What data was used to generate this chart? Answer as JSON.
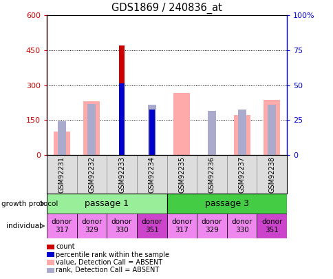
{
  "title": "GDS1869 / 240836_at",
  "samples": [
    "GSM92231",
    "GSM92232",
    "GSM92233",
    "GSM92234",
    "GSM92235",
    "GSM92236",
    "GSM92237",
    "GSM92238"
  ],
  "count_values": [
    0,
    0,
    470,
    195,
    0,
    0,
    0,
    0
  ],
  "percentile_rank_vals": [
    0,
    0,
    308,
    195,
    0,
    0,
    0,
    0
  ],
  "value_absent": [
    100,
    230,
    0,
    0,
    265,
    0,
    170,
    235
  ],
  "rank_absent": [
    145,
    218,
    0,
    215,
    0,
    190,
    195,
    215
  ],
  "ylim_left": [
    0,
    600
  ],
  "ylim_right": [
    0,
    100
  ],
  "yticks_left": [
    0,
    150,
    300,
    450,
    600
  ],
  "yticks_right": [
    0,
    25,
    50,
    75,
    100
  ],
  "color_count": "#cc0000",
  "color_rank": "#0000cc",
  "color_value_absent": "#ffaaaa",
  "color_rank_absent": "#aaaacc",
  "passage1_color": "#99ee99",
  "passage3_color": "#44cc44",
  "individual_colors": [
    "#ee88ee",
    "#ee88ee",
    "#ee88ee",
    "#cc44cc",
    "#ee88ee",
    "#ee88ee",
    "#ee88ee",
    "#cc44cc"
  ],
  "growth_protocol_label": "growth protocol",
  "individual_label": "individual",
  "passage_labels": [
    "passage 1",
    "passage 3"
  ],
  "donor_labels": [
    "donor\n317",
    "donor\n329",
    "donor\n330",
    "donor\n351",
    "donor\n317",
    "donor\n329",
    "donor\n330",
    "donor\n351"
  ],
  "legend_items": [
    "count",
    "percentile rank within the sample",
    "value, Detection Call = ABSENT",
    "rank, Detection Call = ABSENT"
  ],
  "bar_width": 0.35
}
